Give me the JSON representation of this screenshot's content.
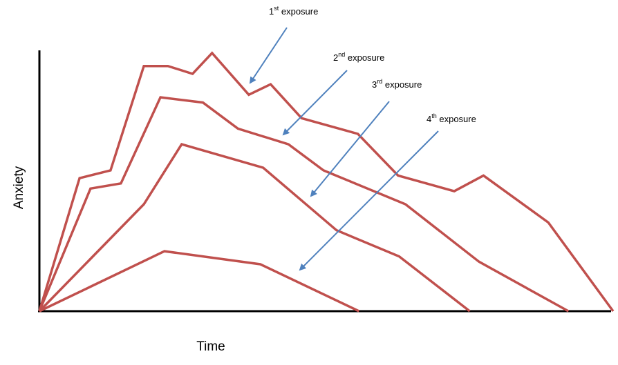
{
  "chart_data": {
    "type": "line",
    "title": "",
    "xlabel": "Time",
    "ylabel": "Anxiety",
    "xlim": [
      0,
      100
    ],
    "ylim": [
      0,
      100
    ],
    "grid": false,
    "legend": "none",
    "colors": {
      "series": "#c0504d",
      "arrow": "#4f81bd",
      "axis": "#000000"
    },
    "series": [
      {
        "name": "1st exposure",
        "points": [
          [
            0,
            0
          ],
          [
            7,
            51
          ],
          [
            12.4,
            54
          ],
          [
            18.2,
            94
          ],
          [
            22.4,
            94
          ],
          [
            26.7,
            91
          ],
          [
            30.1,
            99
          ],
          [
            36.5,
            83
          ],
          [
            40.3,
            87
          ],
          [
            45.7,
            74
          ],
          [
            55.5,
            68
          ],
          [
            62.5,
            52
          ],
          [
            72.3,
            46
          ],
          [
            77.4,
            52
          ],
          [
            88.7,
            34
          ],
          [
            100,
            0
          ]
        ]
      },
      {
        "name": "2nd exposure",
        "points": [
          [
            0,
            0
          ],
          [
            8.9,
            47
          ],
          [
            14.2,
            49
          ],
          [
            21.1,
            82
          ],
          [
            28.5,
            80
          ],
          [
            34.6,
            70
          ],
          [
            43.4,
            64
          ],
          [
            49.5,
            54
          ],
          [
            63.8,
            41
          ],
          [
            76.6,
            19
          ],
          [
            92.2,
            0
          ]
        ]
      },
      {
        "name": "3rd exposure",
        "points": [
          [
            0,
            0
          ],
          [
            18.2,
            41
          ],
          [
            24.8,
            64
          ],
          [
            39,
            55
          ],
          [
            51.8,
            31
          ],
          [
            62.7,
            21
          ],
          [
            75,
            0
          ]
        ]
      },
      {
        "name": "4th exposure",
        "points": [
          [
            0,
            0
          ],
          [
            21.8,
            23
          ],
          [
            38.5,
            18
          ],
          [
            55.7,
            0
          ]
        ]
      }
    ],
    "annotations": [
      {
        "label": "1",
        "sup": "st",
        "text": " exposure"
      },
      {
        "label": "2",
        "sup": "nd",
        "text": " exposure"
      },
      {
        "label": "3",
        "sup": "rd",
        "text": " exposure"
      },
      {
        "label": "4",
        "sup": "th",
        "text": " exposure"
      }
    ]
  }
}
